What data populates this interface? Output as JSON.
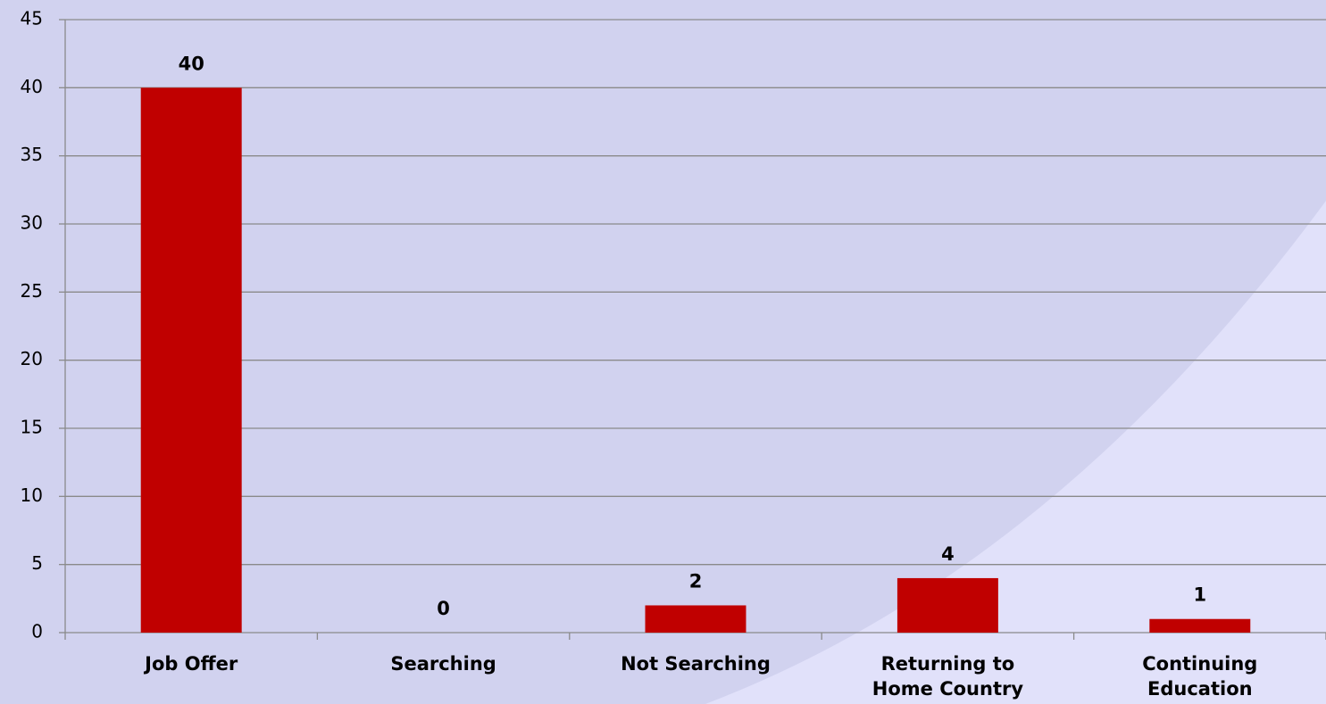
{
  "chart_data": {
    "type": "bar",
    "categories": [
      "Job Offer",
      "Searching",
      "Not Searching",
      "Returning to Home Country",
      "Continuing Education"
    ],
    "values": [
      40,
      0,
      2,
      4,
      1
    ],
    "color": "#c00000",
    "ylim": [
      0,
      45
    ],
    "yticks": [
      0,
      5,
      10,
      15,
      20,
      25,
      30,
      35,
      40,
      45
    ],
    "grid": true
  }
}
